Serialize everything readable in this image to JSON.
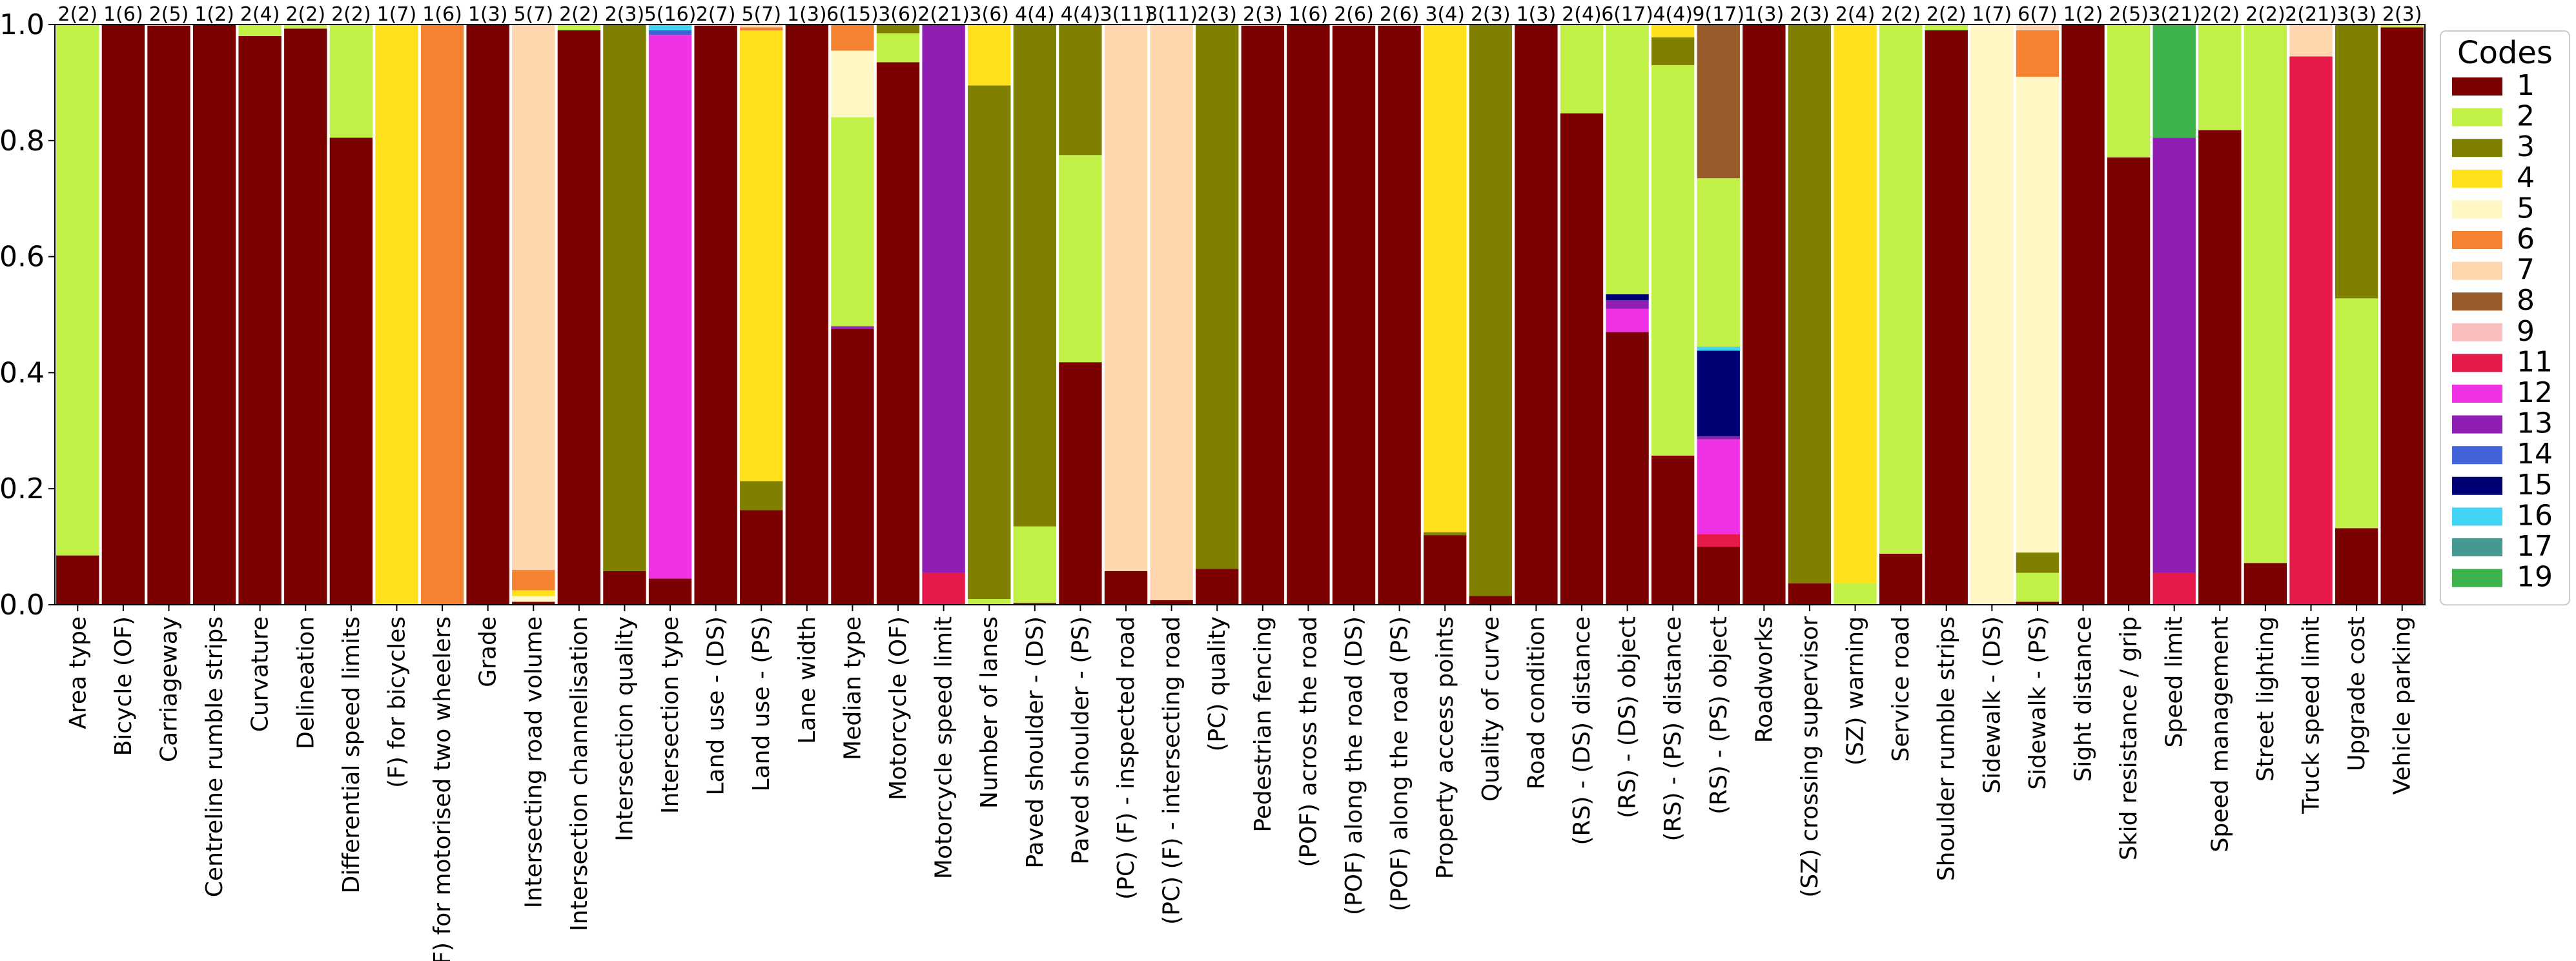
{
  "chart_data": {
    "type": "bar",
    "stacked": true,
    "normalized": true,
    "title": "",
    "xlabel": "",
    "ylabel": "",
    "ylim": [
      0,
      1.0
    ],
    "yticks": [
      "0.0",
      "0.2",
      "0.4",
      "0.6",
      "0.8",
      "1.0"
    ],
    "legend": {
      "title": "Codes",
      "position": "right",
      "entries": [
        {
          "code": "1",
          "color": "#7b0000"
        },
        {
          "code": "2",
          "color": "#c1f046"
        },
        {
          "code": "3",
          "color": "#808000"
        },
        {
          "code": "4",
          "color": "#ffe01a"
        },
        {
          "code": "5",
          "color": "#fff7c4"
        },
        {
          "code": "6",
          "color": "#f58231"
        },
        {
          "code": "7",
          "color": "#ffd6ad"
        },
        {
          "code": "8",
          "color": "#9a5b2b"
        },
        {
          "code": "9",
          "color": "#fabebe"
        },
        {
          "code": "11",
          "color": "#e6194b"
        },
        {
          "code": "12",
          "color": "#f032e6"
        },
        {
          "code": "13",
          "color": "#911eb4"
        },
        {
          "code": "14",
          "color": "#4363d8"
        },
        {
          "code": "15",
          "color": "#000075"
        },
        {
          "code": "16",
          "color": "#42d4f4"
        },
        {
          "code": "17",
          "color": "#469990"
        },
        {
          "code": "19",
          "color": "#3cb44b"
        }
      ]
    },
    "bars": [
      {
        "category": "Area type",
        "annotation": "2(2)",
        "segments": [
          {
            "code": "1",
            "value": 0.085
          },
          {
            "code": "2",
            "value": 0.915
          }
        ]
      },
      {
        "category": "Bicycle (OF)",
        "annotation": "1(6)",
        "segments": [
          {
            "code": "1",
            "value": 1.0
          }
        ]
      },
      {
        "category": "Carriageway",
        "annotation": "2(5)",
        "segments": [
          {
            "code": "1",
            "value": 0.998
          },
          {
            "code": "2",
            "value": 0.002
          }
        ]
      },
      {
        "category": "Centreline rumble strips",
        "annotation": "1(2)",
        "segments": [
          {
            "code": "1",
            "value": 1.0
          }
        ]
      },
      {
        "category": "Curvature",
        "annotation": "2(4)",
        "segments": [
          {
            "code": "1",
            "value": 0.98
          },
          {
            "code": "2",
            "value": 0.02
          }
        ]
      },
      {
        "category": "Delineation",
        "annotation": "2(2)",
        "segments": [
          {
            "code": "1",
            "value": 0.993
          },
          {
            "code": "2",
            "value": 0.007
          }
        ]
      },
      {
        "category": "Differential speed limits",
        "annotation": "2(2)",
        "segments": [
          {
            "code": "1",
            "value": 0.805
          },
          {
            "code": "2",
            "value": 0.195
          }
        ]
      },
      {
        "category": "(F) for bicycles",
        "annotation": "1(7)",
        "segments": [
          {
            "code": "4",
            "value": 1.0
          }
        ]
      },
      {
        "category": "(F) for motorised two wheelers",
        "annotation": "1(6)",
        "segments": [
          {
            "code": "6",
            "value": 1.0
          }
        ]
      },
      {
        "category": "Grade",
        "annotation": "1(3)",
        "segments": [
          {
            "code": "1",
            "value": 1.0
          }
        ]
      },
      {
        "category": "Intersecting road volume",
        "annotation": "5(7)",
        "segments": [
          {
            "code": "1",
            "value": 0.005
          },
          {
            "code": "5",
            "value": 0.01
          },
          {
            "code": "4",
            "value": 0.01
          },
          {
            "code": "6",
            "value": 0.035
          },
          {
            "code": "7",
            "value": 0.94
          }
        ]
      },
      {
        "category": "Intersection channelisation",
        "annotation": "2(2)",
        "segments": [
          {
            "code": "1",
            "value": 0.99
          },
          {
            "code": "2",
            "value": 0.01
          }
        ]
      },
      {
        "category": "Intersection quality",
        "annotation": "2(3)",
        "segments": [
          {
            "code": "1",
            "value": 0.058
          },
          {
            "code": "3",
            "value": 0.942
          }
        ]
      },
      {
        "category": "Intersection type",
        "annotation": "5(16)",
        "segments": [
          {
            "code": "1",
            "value": 0.045
          },
          {
            "code": "12",
            "value": 0.937
          },
          {
            "code": "14",
            "value": 0.008
          },
          {
            "code": "16",
            "value": 0.01
          }
        ]
      },
      {
        "category": "Land use - (DS)",
        "annotation": "2(7)",
        "segments": [
          {
            "code": "1",
            "value": 0.998
          },
          {
            "code": "2",
            "value": 0.002
          }
        ]
      },
      {
        "category": "Land use - (PS)",
        "annotation": "5(7)",
        "segments": [
          {
            "code": "1",
            "value": 0.163
          },
          {
            "code": "3",
            "value": 0.05
          },
          {
            "code": "4",
            "value": 0.777
          },
          {
            "code": "6",
            "value": 0.005
          },
          {
            "code": "7",
            "value": 0.005
          }
        ]
      },
      {
        "category": "Lane width",
        "annotation": "1(3)",
        "segments": [
          {
            "code": "1",
            "value": 1.0
          }
        ]
      },
      {
        "category": "Median type",
        "annotation": "6(15)",
        "segments": [
          {
            "code": "1",
            "value": 0.475
          },
          {
            "code": "13",
            "value": 0.005
          },
          {
            "code": "2",
            "value": 0.36
          },
          {
            "code": "5",
            "value": 0.115
          },
          {
            "code": "6",
            "value": 0.045
          }
        ]
      },
      {
        "category": "Motorcycle (OF)",
        "annotation": "3(6)",
        "segments": [
          {
            "code": "1",
            "value": 0.935
          },
          {
            "code": "2",
            "value": 0.05
          },
          {
            "code": "3",
            "value": 0.015
          }
        ]
      },
      {
        "category": "Motorcycle speed limit",
        "annotation": "2(21)",
        "segments": [
          {
            "code": "11",
            "value": 0.055
          },
          {
            "code": "13",
            "value": 0.945
          }
        ]
      },
      {
        "category": "Number of lanes",
        "annotation": "3(6)",
        "segments": [
          {
            "code": "2",
            "value": 0.01
          },
          {
            "code": "3",
            "value": 0.885
          },
          {
            "code": "4",
            "value": 0.105
          }
        ]
      },
      {
        "category": "Paved shoulder - (DS)",
        "annotation": "4(4)",
        "segments": [
          {
            "code": "1",
            "value": 0.003
          },
          {
            "code": "2",
            "value": 0.132
          },
          {
            "code": "3",
            "value": 0.865
          }
        ]
      },
      {
        "category": "Paved shoulder - (PS)",
        "annotation": "4(4)",
        "segments": [
          {
            "code": "1",
            "value": 0.418
          },
          {
            "code": "2",
            "value": 0.357
          },
          {
            "code": "3",
            "value": 0.225
          }
        ]
      },
      {
        "category": "(PC) (F) - inspected road",
        "annotation": "3(11)",
        "segments": [
          {
            "code": "1",
            "value": 0.058
          },
          {
            "code": "7",
            "value": 0.942
          }
        ]
      },
      {
        "category": "(PC) (F) - intersecting road",
        "annotation": "3(11)",
        "segments": [
          {
            "code": "1",
            "value": 0.008
          },
          {
            "code": "7",
            "value": 0.992
          }
        ]
      },
      {
        "category": "(PC) quality",
        "annotation": "2(3)",
        "segments": [
          {
            "code": "1",
            "value": 0.062
          },
          {
            "code": "3",
            "value": 0.938
          }
        ]
      },
      {
        "category": "Pedestrian fencing",
        "annotation": "2(3)",
        "segments": [
          {
            "code": "1",
            "value": 0.998
          },
          {
            "code": "2",
            "value": 0.002
          }
        ]
      },
      {
        "category": "(POF) across the road",
        "annotation": "1(6)",
        "segments": [
          {
            "code": "1",
            "value": 1.0
          }
        ]
      },
      {
        "category": "(POF) along the road (DS)",
        "annotation": "2(6)",
        "segments": [
          {
            "code": "1",
            "value": 0.998
          },
          {
            "code": "2",
            "value": 0.002
          }
        ]
      },
      {
        "category": "(POF) along the road (PS)",
        "annotation": "2(6)",
        "segments": [
          {
            "code": "1",
            "value": 0.998
          },
          {
            "code": "2",
            "value": 0.002
          }
        ]
      },
      {
        "category": "Property access points",
        "annotation": "3(4)",
        "segments": [
          {
            "code": "1",
            "value": 0.12
          },
          {
            "code": "3",
            "value": 0.005
          },
          {
            "code": "4",
            "value": 0.875
          }
        ]
      },
      {
        "category": "Quality of curve",
        "annotation": "2(3)",
        "segments": [
          {
            "code": "1",
            "value": 0.015
          },
          {
            "code": "3",
            "value": 0.985
          }
        ]
      },
      {
        "category": "Road condition",
        "annotation": "1(3)",
        "segments": [
          {
            "code": "1",
            "value": 1.0
          }
        ]
      },
      {
        "category": "(RS) - (DS) distance",
        "annotation": "2(4)",
        "segments": [
          {
            "code": "1",
            "value": 0.847
          },
          {
            "code": "2",
            "value": 0.153
          }
        ]
      },
      {
        "category": "(RS) - (DS) object",
        "annotation": "6(17)",
        "segments": [
          {
            "code": "1",
            "value": 0.47
          },
          {
            "code": "12",
            "value": 0.04
          },
          {
            "code": "13",
            "value": 0.015
          },
          {
            "code": "15",
            "value": 0.01
          },
          {
            "code": "2",
            "value": 0.465
          }
        ]
      },
      {
        "category": "(RS) - (PS) distance",
        "annotation": "4(4)",
        "segments": [
          {
            "code": "1",
            "value": 0.257
          },
          {
            "code": "2",
            "value": 0.673
          },
          {
            "code": "3",
            "value": 0.048
          },
          {
            "code": "4",
            "value": 0.022
          }
        ]
      },
      {
        "category": "(RS) - (PS) object",
        "annotation": "9(17)",
        "segments": [
          {
            "code": "1",
            "value": 0.1
          },
          {
            "code": "11",
            "value": 0.022
          },
          {
            "code": "12",
            "value": 0.163
          },
          {
            "code": "13",
            "value": 0.005
          },
          {
            "code": "15",
            "value": 0.148
          },
          {
            "code": "16",
            "value": 0.007
          },
          {
            "code": "2",
            "value": 0.29
          },
          {
            "code": "8",
            "value": 0.265
          }
        ]
      },
      {
        "category": "Roadworks",
        "annotation": "1(3)",
        "segments": [
          {
            "code": "1",
            "value": 1.0
          }
        ]
      },
      {
        "category": "(SZ) crossing supervisor",
        "annotation": "2(3)",
        "segments": [
          {
            "code": "1",
            "value": 0.037
          },
          {
            "code": "3",
            "value": 0.963
          }
        ]
      },
      {
        "category": "(SZ) warning",
        "annotation": "2(4)",
        "segments": [
          {
            "code": "2",
            "value": 0.037
          },
          {
            "code": "4",
            "value": 0.963
          }
        ]
      },
      {
        "category": "Service road",
        "annotation": "2(2)",
        "segments": [
          {
            "code": "1",
            "value": 0.088
          },
          {
            "code": "2",
            "value": 0.912
          }
        ]
      },
      {
        "category": "Shoulder rumble strips",
        "annotation": "2(2)",
        "segments": [
          {
            "code": "1",
            "value": 0.99
          },
          {
            "code": "2",
            "value": 0.01
          }
        ]
      },
      {
        "category": "Sidewalk - (DS)",
        "annotation": "1(7)",
        "segments": [
          {
            "code": "5",
            "value": 1.0
          }
        ]
      },
      {
        "category": "Sidewalk - (PS)",
        "annotation": "6(7)",
        "segments": [
          {
            "code": "1",
            "value": 0.005
          },
          {
            "code": "2",
            "value": 0.05
          },
          {
            "code": "3",
            "value": 0.035
          },
          {
            "code": "5",
            "value": 0.82
          },
          {
            "code": "6",
            "value": 0.08
          },
          {
            "code": "7",
            "value": 0.01
          }
        ]
      },
      {
        "category": "Sight distance",
        "annotation": "1(2)",
        "segments": [
          {
            "code": "1",
            "value": 1.0
          }
        ]
      },
      {
        "category": "Skid resistance / grip",
        "annotation": "2(5)",
        "segments": [
          {
            "code": "1",
            "value": 0.771
          },
          {
            "code": "2",
            "value": 0.229
          }
        ]
      },
      {
        "category": "Speed limit",
        "annotation": "3(21)",
        "segments": [
          {
            "code": "11",
            "value": 0.055
          },
          {
            "code": "13",
            "value": 0.75
          },
          {
            "code": "19",
            "value": 0.195
          }
        ]
      },
      {
        "category": "Speed management",
        "annotation": "2(2)",
        "segments": [
          {
            "code": "1",
            "value": 0.818
          },
          {
            "code": "2",
            "value": 0.182
          }
        ]
      },
      {
        "category": "Street lighting",
        "annotation": "2(2)",
        "segments": [
          {
            "code": "1",
            "value": 0.072
          },
          {
            "code": "2",
            "value": 0.928
          }
        ]
      },
      {
        "category": "Truck speed limit",
        "annotation": "2(21)",
        "segments": [
          {
            "code": "11",
            "value": 0.945
          },
          {
            "code": "7",
            "value": 0.055
          }
        ]
      },
      {
        "category": "Upgrade cost",
        "annotation": "3(3)",
        "segments": [
          {
            "code": "1",
            "value": 0.132
          },
          {
            "code": "2",
            "value": 0.396
          },
          {
            "code": "3",
            "value": 0.472
          }
        ]
      },
      {
        "category": "Vehicle parking",
        "annotation": "2(3)",
        "segments": [
          {
            "code": "1",
            "value": 0.995
          },
          {
            "code": "2",
            "value": 0.005
          }
        ]
      }
    ]
  }
}
